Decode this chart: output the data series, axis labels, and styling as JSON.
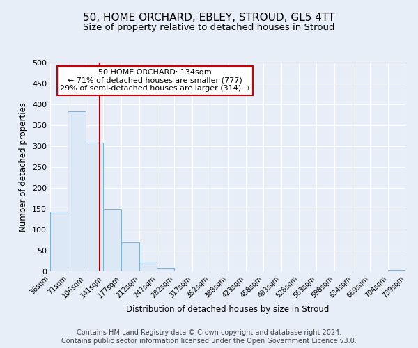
{
  "title": "50, HOME ORCHARD, EBLEY, STROUD, GL5 4TT",
  "subtitle": "Size of property relative to detached houses in Stroud",
  "xlabel": "Distribution of detached houses by size in Stroud",
  "ylabel": "Number of detached properties",
  "bin_edges": [
    36,
    71,
    106,
    141,
    177,
    212,
    247,
    282,
    317,
    352,
    388,
    423,
    458,
    493,
    528,
    563,
    598,
    634,
    669,
    704,
    739
  ],
  "bar_heights": [
    144,
    384,
    309,
    149,
    70,
    24,
    8,
    0,
    0,
    0,
    0,
    0,
    0,
    0,
    0,
    0,
    0,
    0,
    0,
    3
  ],
  "bar_color": "#dce8f5",
  "bar_edge_color": "#7ab0d4",
  "property_size": 134,
  "vline_color": "#aa0000",
  "annotation_line1": "50 HOME ORCHARD: 134sqm",
  "annotation_line2": "← 71% of detached houses are smaller (777)",
  "annotation_line3": "29% of semi-detached houses are larger (314) →",
  "annotation_box_color": "#ffffff",
  "annotation_box_edge_color": "#cc0000",
  "ylim": [
    0,
    500
  ],
  "yticks": [
    0,
    50,
    100,
    150,
    200,
    250,
    300,
    350,
    400,
    450,
    500
  ],
  "bg_color": "#e8eef8",
  "footer_line1": "Contains HM Land Registry data © Crown copyright and database right 2024.",
  "footer_line2": "Contains public sector information licensed under the Open Government Licence v3.0.",
  "title_fontsize": 11,
  "subtitle_fontsize": 9.5,
  "footer_fontsize": 7
}
